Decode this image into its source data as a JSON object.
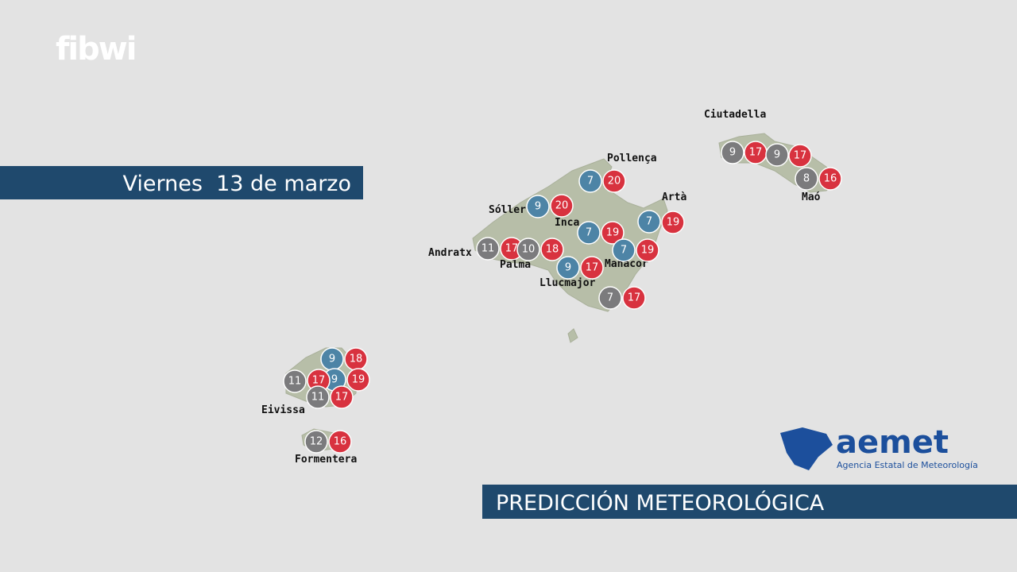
{
  "logo": "fibwi",
  "date": "Viernes  13 de marzo",
  "places": [
    "Ciutadella",
    "Maó",
    "Pollença",
    "Artà",
    "Sóller",
    "Inca",
    "Andratx",
    "Palma",
    "Manacor",
    "Llucmajor",
    "Eivissa",
    "Formentera"
  ],
  "temperatures": [
    9,
    17,
    9,
    17,
    8,
    16,
    7,
    20,
    7,
    19,
    9,
    20,
    7,
    19,
    11,
    17,
    10,
    18,
    7,
    19,
    9,
    17,
    7,
    17,
    9,
    18,
    9,
    11,
    17,
    19,
    11,
    17,
    12,
    16
  ],
  "aemet": {
    "name": "aemet",
    "subtitle": "Agencia Estatal de Meteorología"
  },
  "footer": "PREDICCIÓN METEOROLÓGICA"
}
